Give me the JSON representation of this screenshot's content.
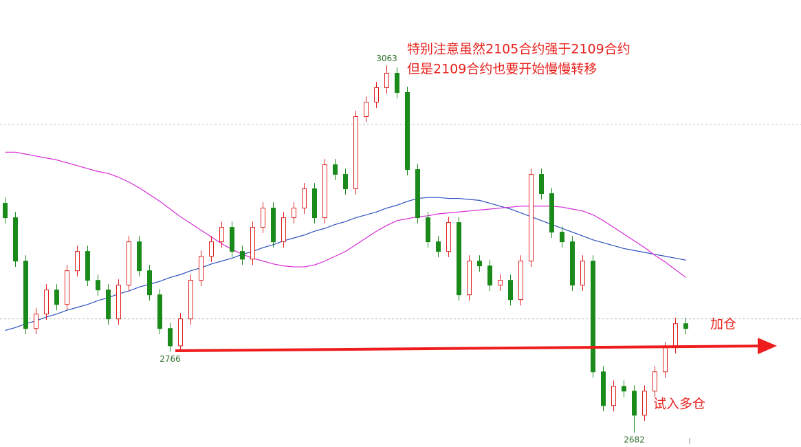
{
  "chart_data": {
    "type": "candlestick",
    "ylim": [
      2667,
      3131
    ],
    "gridlines": [
      3002,
      2800
    ],
    "up_color": "#e02020",
    "down_color": "#1a8a1a",
    "open": [
      2920,
      2905,
      2860,
      2790,
      2805,
      2830,
      2815,
      2850,
      2870,
      2840,
      2830,
      2800,
      2835,
      2880,
      2850,
      2825,
      2790,
      2772,
      2800,
      2840,
      2865,
      2880,
      2895,
      2870,
      2862,
      2895,
      2915,
      2880,
      2905,
      2915,
      2935,
      2905,
      2960,
      2950,
      2935,
      3010,
      3025,
      3040,
      3055,
      3035,
      2955,
      2905,
      2880,
      2870,
      2900,
      2825,
      2860,
      2855,
      2835,
      2840,
      2820,
      2860,
      2950,
      2930,
      2890,
      2880,
      2835,
      2860,
      2745,
      2710,
      2730,
      2725,
      2700,
      2725,
      2745,
      2770,
      2795
    ],
    "high": [
      2926,
      2911,
      2866,
      2811,
      2836,
      2836,
      2856,
      2876,
      2876,
      2846,
      2836,
      2841,
      2886,
      2886,
      2856,
      2831,
      2796,
      2806,
      2846,
      2871,
      2886,
      2901,
      2901,
      2876,
      2901,
      2921,
      2921,
      2911,
      2921,
      2941,
      2941,
      2966,
      2966,
      2956,
      3016,
      3031,
      3046,
      3063,
      3061,
      3041,
      2961,
      2911,
      2886,
      2906,
      2906,
      2866,
      2866,
      2861,
      2846,
      2846,
      2866,
      2956,
      2956,
      2936,
      2896,
      2886,
      2866,
      2866,
      2751,
      2736,
      2736,
      2731,
      2731,
      2751,
      2776,
      2801,
      2801
    ],
    "low": [
      2899,
      2854,
      2784,
      2784,
      2799,
      2809,
      2809,
      2844,
      2834,
      2824,
      2794,
      2794,
      2829,
      2844,
      2819,
      2784,
      2766,
      2768,
      2794,
      2834,
      2859,
      2874,
      2864,
      2856,
      2856,
      2889,
      2874,
      2874,
      2899,
      2909,
      2899,
      2899,
      2944,
      2929,
      2929,
      3004,
      3019,
      3034,
      3029,
      2949,
      2899,
      2874,
      2864,
      2864,
      2819,
      2819,
      2849,
      2829,
      2829,
      2814,
      2814,
      2854,
      2924,
      2884,
      2874,
      2829,
      2829,
      2739,
      2704,
      2704,
      2719,
      2682,
      2694,
      2719,
      2739,
      2764,
      2784
    ],
    "close": [
      2905,
      2860,
      2790,
      2805,
      2830,
      2815,
      2850,
      2870,
      2840,
      2830,
      2800,
      2835,
      2880,
      2850,
      2825,
      2790,
      2772,
      2800,
      2840,
      2865,
      2880,
      2895,
      2870,
      2862,
      2895,
      2915,
      2880,
      2905,
      2915,
      2935,
      2905,
      2960,
      2950,
      2935,
      3010,
      3025,
      3040,
      3055,
      3035,
      2955,
      2905,
      2880,
      2870,
      2900,
      2825,
      2860,
      2855,
      2835,
      2840,
      2820,
      2860,
      2950,
      2930,
      2890,
      2880,
      2835,
      2860,
      2745,
      2710,
      2730,
      2725,
      2700,
      2725,
      2745,
      2770,
      2795,
      2790
    ],
    "lines": [
      {
        "color": "#2d4fc0",
        "values": [
          2788,
          2791,
          2795,
          2798,
          2802,
          2805,
          2809,
          2812,
          2815,
          2819,
          2822,
          2826,
          2829,
          2833,
          2836,
          2839,
          2843,
          2846,
          2850,
          2853,
          2857,
          2860,
          2863,
          2867,
          2870,
          2874,
          2877,
          2881,
          2884,
          2887,
          2891,
          2894,
          2898,
          2901,
          2905,
          2908,
          2911,
          2915,
          2918,
          2922,
          2925,
          2926,
          2926,
          2925,
          2925,
          2924,
          2923,
          2920,
          2917,
          2914,
          2910,
          2906,
          2902,
          2898,
          2894,
          2890,
          2886,
          2882,
          2879,
          2876,
          2873,
          2871,
          2869,
          2867,
          2865,
          2863,
          2861
        ]
      },
      {
        "color": "#d62ad6",
        "values": [
          2973,
          2973,
          2971,
          2969,
          2967,
          2965,
          2962,
          2959,
          2956,
          2953,
          2951,
          2947,
          2942,
          2936,
          2929,
          2922,
          2914,
          2906,
          2899,
          2892,
          2885,
          2878,
          2872,
          2867,
          2863,
          2860,
          2857,
          2855,
          2854,
          2854,
          2856,
          2860,
          2865,
          2870,
          2877,
          2884,
          2891,
          2897,
          2902,
          2904,
          2906,
          2907,
          2909,
          2910,
          2911,
          2912,
          2913,
          2914,
          2915,
          2916,
          2917,
          2917,
          2917,
          2917,
          2916,
          2914,
          2912,
          2908,
          2902,
          2895,
          2888,
          2881,
          2874,
          2866,
          2859,
          2851,
          2843
        ]
      }
    ],
    "price_labels": [
      3063,
      2766,
      2682
    ],
    "annotations": [
      "特别注意虽然2105合约强于2109合约",
      "但是2109合约也要开始慢慢转移",
      "加仓",
      "试入多仓"
    ]
  }
}
